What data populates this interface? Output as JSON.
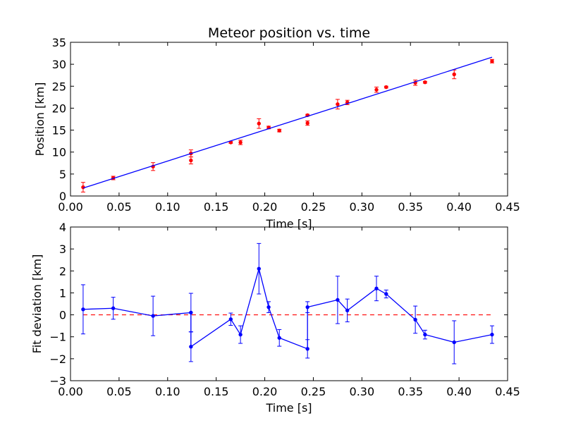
{
  "chart_data": [
    {
      "type": "scatter",
      "title": "Meteor position vs. time",
      "xlabel": "Time [s]",
      "ylabel": "Position [km]",
      "xlim": [
        0.0,
        0.45
      ],
      "ylim": [
        0,
        35
      ],
      "xticks": [
        "0.00",
        "0.05",
        "0.10",
        "0.15",
        "0.20",
        "0.25",
        "0.30",
        "0.35",
        "0.40",
        "0.45"
      ],
      "yticks": [
        "0",
        "5",
        "10",
        "15",
        "20",
        "25",
        "30",
        "35"
      ],
      "grid": false,
      "colors": {
        "points": "#ff0000",
        "fit": "#0000ff"
      },
      "series": [
        {
          "kind": "errorbar-points",
          "x": [
            0.013,
            0.044,
            0.085,
            0.124,
            0.124,
            0.165,
            0.175,
            0.194,
            0.204,
            0.215,
            0.244,
            0.244,
            0.275,
            0.285,
            0.315,
            0.325,
            0.355,
            0.365,
            0.395,
            0.434
          ],
          "y": [
            2.0,
            4.1,
            6.7,
            8.1,
            9.7,
            12.2,
            12.2,
            16.5,
            15.6,
            14.9,
            16.6,
            18.4,
            20.9,
            21.3,
            24.2,
            24.8,
            25.8,
            25.9,
            27.7,
            30.7
          ],
          "err": [
            1.1,
            0.4,
            0.9,
            0.8,
            0.8,
            0.2,
            0.5,
            1.1,
            0.3,
            0.3,
            0.5,
            0.2,
            1.1,
            0.5,
            0.6,
            0.2,
            0.6,
            0.2,
            1.0,
            0.4
          ]
        },
        {
          "kind": "fit-line",
          "x": [
            0.013,
            0.434
          ],
          "y": [
            1.8,
            31.6
          ]
        }
      ]
    },
    {
      "type": "line",
      "title": "",
      "xlabel": "Time [s]",
      "ylabel": "Fit deviation [km]",
      "xlim": [
        0.0,
        0.45
      ],
      "ylim": [
        -3,
        4
      ],
      "xticks": [
        "0.00",
        "0.05",
        "0.10",
        "0.15",
        "0.20",
        "0.25",
        "0.30",
        "0.35",
        "0.40",
        "0.45"
      ],
      "yticks": [
        "−3",
        "−2",
        "−1",
        "0",
        "1",
        "2",
        "3",
        "4"
      ],
      "grid": false,
      "colors": {
        "series": "#0000ff",
        "zero_line": "#ff0000"
      },
      "reference_line_y": 0,
      "series": [
        {
          "kind": "errorbar-line",
          "x": [
            0.013,
            0.044,
            0.085,
            0.124,
            0.124,
            0.165,
            0.175,
            0.194,
            0.204,
            0.215,
            0.244,
            0.244,
            0.275,
            0.285,
            0.315,
            0.325,
            0.355,
            0.365,
            0.395,
            0.434
          ],
          "y": [
            0.25,
            0.3,
            -0.05,
            0.1,
            -1.45,
            -0.2,
            -0.9,
            2.1,
            0.35,
            -1.05,
            -1.55,
            0.35,
            0.68,
            0.2,
            1.2,
            0.95,
            -0.22,
            -0.9,
            -1.25,
            -0.9
          ],
          "err": [
            1.12,
            0.5,
            0.9,
            0.88,
            0.68,
            0.28,
            0.4,
            1.15,
            0.25,
            0.38,
            0.42,
            0.25,
            1.08,
            0.52,
            0.56,
            0.18,
            0.62,
            0.2,
            0.98,
            0.4
          ]
        }
      ]
    }
  ]
}
